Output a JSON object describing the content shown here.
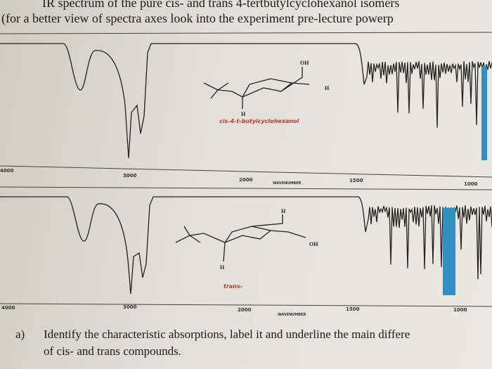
{
  "header": {
    "line1": "IR spectrum of the pure cis- and trans 4-tertbutylcyclohexanol isomers",
    "line2": "(for a better view of spectra axes look into the experiment pre-lecture powerp"
  },
  "spectra": [
    {
      "molecule": {
        "labels": [
          "OH",
          "H",
          "H"
        ],
        "name": "cis-4-t-butylcyclohexanol"
      },
      "axis_labels": [
        "4000",
        "3000",
        "2000",
        "WAVENUMBER",
        "1500",
        "1000"
      ]
    },
    {
      "molecule": {
        "labels": [
          "H",
          "OH",
          "H"
        ],
        "name": "trans-"
      },
      "axis_labels": [
        "4000",
        "3000",
        "2000",
        "WAVENUMBER",
        "1500",
        "1000"
      ]
    }
  ],
  "question": {
    "label": "a)",
    "lines": [
      "Identify the characteristic absorptions, label it and underline the main differe",
      "of cis- and trans compounds."
    ]
  }
}
